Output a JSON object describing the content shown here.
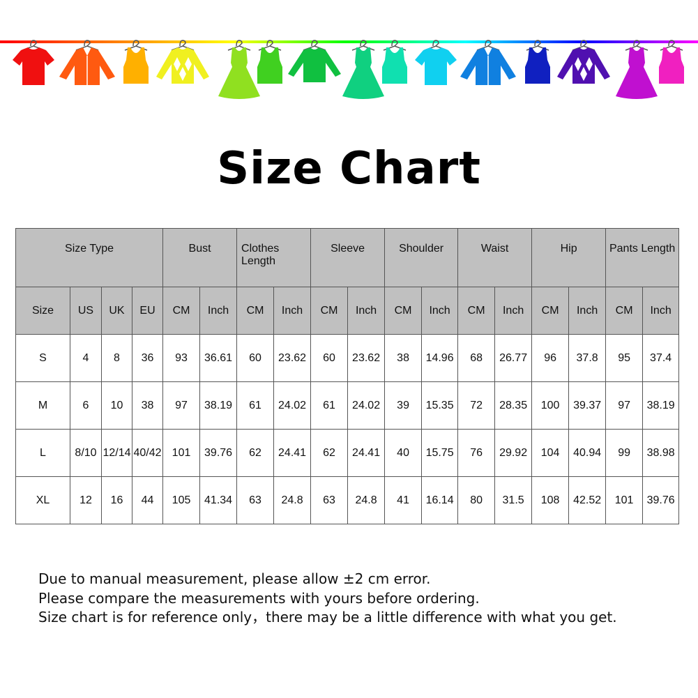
{
  "banner": {
    "line_gradient": [
      "#ff0000",
      "#ff8000",
      "#ffff00",
      "#00ff00",
      "#00ffff",
      "#0000ff",
      "#ff00ff"
    ],
    "items": [
      {
        "icon": "tshirt-icon",
        "color": "#f01010"
      },
      {
        "icon": "jacket-icon",
        "color": "#ff5a10"
      },
      {
        "icon": "tank-top-icon",
        "color": "#ffb000"
      },
      {
        "icon": "sweater-icon",
        "color": "#f0f020"
      },
      {
        "icon": "dress-icon",
        "color": "#90e020"
      },
      {
        "icon": "tank-top-icon",
        "color": "#40d020"
      },
      {
        "icon": "longsleeve-icon",
        "color": "#10c040"
      },
      {
        "icon": "dress-icon",
        "color": "#10d080"
      },
      {
        "icon": "tank-top-icon",
        "color": "#10e0b0"
      },
      {
        "icon": "tshirt-icon",
        "color": "#10d0f0"
      },
      {
        "icon": "jacket-icon",
        "color": "#1080e0"
      },
      {
        "icon": "tank-top-icon",
        "color": "#1020c0"
      },
      {
        "icon": "sweater-icon",
        "color": "#5010b0"
      },
      {
        "icon": "dress-icon",
        "color": "#c010d0"
      },
      {
        "icon": "tank-top-icon",
        "color": "#f020c0"
      }
    ]
  },
  "title": "Size Chart",
  "table": {
    "groups": [
      "Size Type",
      "Bust",
      "Clothes Length",
      "Sleeve",
      "Shoulder",
      "Waist",
      "Hip",
      "Pants Length"
    ],
    "subheaders": [
      "Size",
      "US",
      "UK",
      "EU",
      "CM",
      "Inch",
      "CM",
      "Inch",
      "CM",
      "Inch",
      "CM",
      "Inch",
      "CM",
      "Inch",
      "CM",
      "Inch",
      "CM",
      "Inch"
    ],
    "rows": [
      [
        "S",
        "4",
        "8",
        "36",
        "93",
        "36.61",
        "60",
        "23.62",
        "60",
        "23.62",
        "38",
        "14.96",
        "68",
        "26.77",
        "96",
        "37.8",
        "95",
        "37.4"
      ],
      [
        "M",
        "6",
        "10",
        "38",
        "97",
        "38.19",
        "61",
        "24.02",
        "61",
        "24.02",
        "39",
        "15.35",
        "72",
        "28.35",
        "100",
        "39.37",
        "97",
        "38.19"
      ],
      [
        "L",
        "8/10",
        "12/14",
        "40/42",
        "101",
        "39.76",
        "62",
        "24.41",
        "62",
        "24.41",
        "40",
        "15.75",
        "76",
        "29.92",
        "104",
        "40.94",
        "99",
        "38.98"
      ],
      [
        "XL",
        "12",
        "16",
        "44",
        "105",
        "41.34",
        "63",
        "24.8",
        "63",
        "24.8",
        "41",
        "16.14",
        "80",
        "31.5",
        "108",
        "42.52",
        "101",
        "39.76"
      ]
    ]
  },
  "notes": [
    "Due to manual measurement, please allow ±2 cm error.",
    "Please compare the measurements with yours before ordering.",
    "Size chart is for reference only，there may be a little difference with what you get."
  ]
}
